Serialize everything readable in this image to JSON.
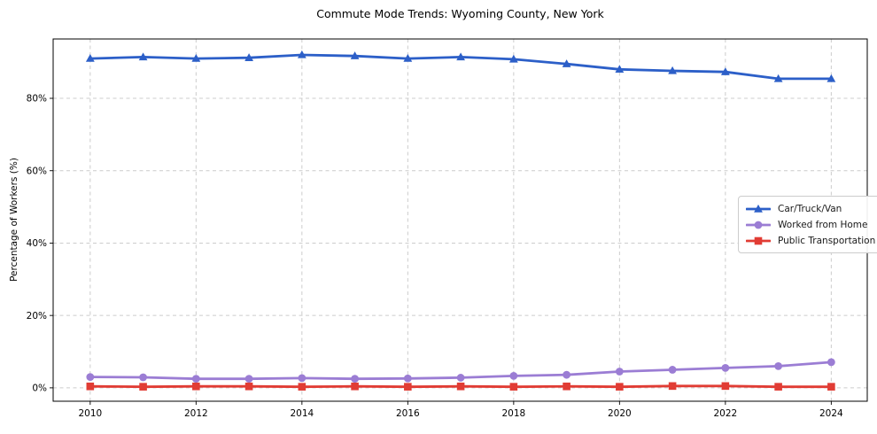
{
  "chart_data": {
    "type": "line",
    "title": "Commute Mode Trends: Wyoming County, New York",
    "xlabel": "",
    "ylabel": "Percentage of Workers (%)",
    "x": [
      2010,
      2011,
      2012,
      2013,
      2014,
      2015,
      2016,
      2017,
      2018,
      2019,
      2020,
      2021,
      2022,
      2023,
      2024
    ],
    "series": [
      {
        "name": "Car/Truck/Van",
        "color": "#2c5fc8",
        "marker": "triangle",
        "values": [
          91.0,
          91.4,
          91.0,
          91.2,
          92.0,
          91.7,
          91.0,
          91.4,
          90.8,
          89.5,
          88.0,
          87.6,
          87.3,
          85.4,
          85.4
        ]
      },
      {
        "name": "Worked from Home",
        "color": "#9b7dd4",
        "marker": "circle",
        "values": [
          3.0,
          2.9,
          2.5,
          2.5,
          2.7,
          2.5,
          2.6,
          2.8,
          3.3,
          3.6,
          4.5,
          5.0,
          5.5,
          6.0,
          7.1
        ]
      },
      {
        "name": "Public Transportation",
        "color": "#e13c34",
        "marker": "square",
        "values": [
          0.4,
          0.3,
          0.4,
          0.4,
          0.3,
          0.4,
          0.3,
          0.4,
          0.3,
          0.4,
          0.3,
          0.5,
          0.5,
          0.3,
          0.3
        ]
      }
    ],
    "xticks": [
      2010,
      2012,
      2014,
      2016,
      2018,
      2020,
      2022,
      2024
    ],
    "yticks": [
      0,
      20,
      40,
      60,
      80
    ],
    "ytick_labels": [
      "0%",
      "20%",
      "40%",
      "60%",
      "80%"
    ],
    "xlim": [
      2009.3,
      2024.68
    ],
    "ylim": [
      -3.7,
      96.4
    ],
    "grid": true,
    "grid_style": "dashed",
    "legend_position": "center-right",
    "background_color": "#ffffff",
    "grid_color": "#cccccc",
    "spine_color": "#000000"
  }
}
